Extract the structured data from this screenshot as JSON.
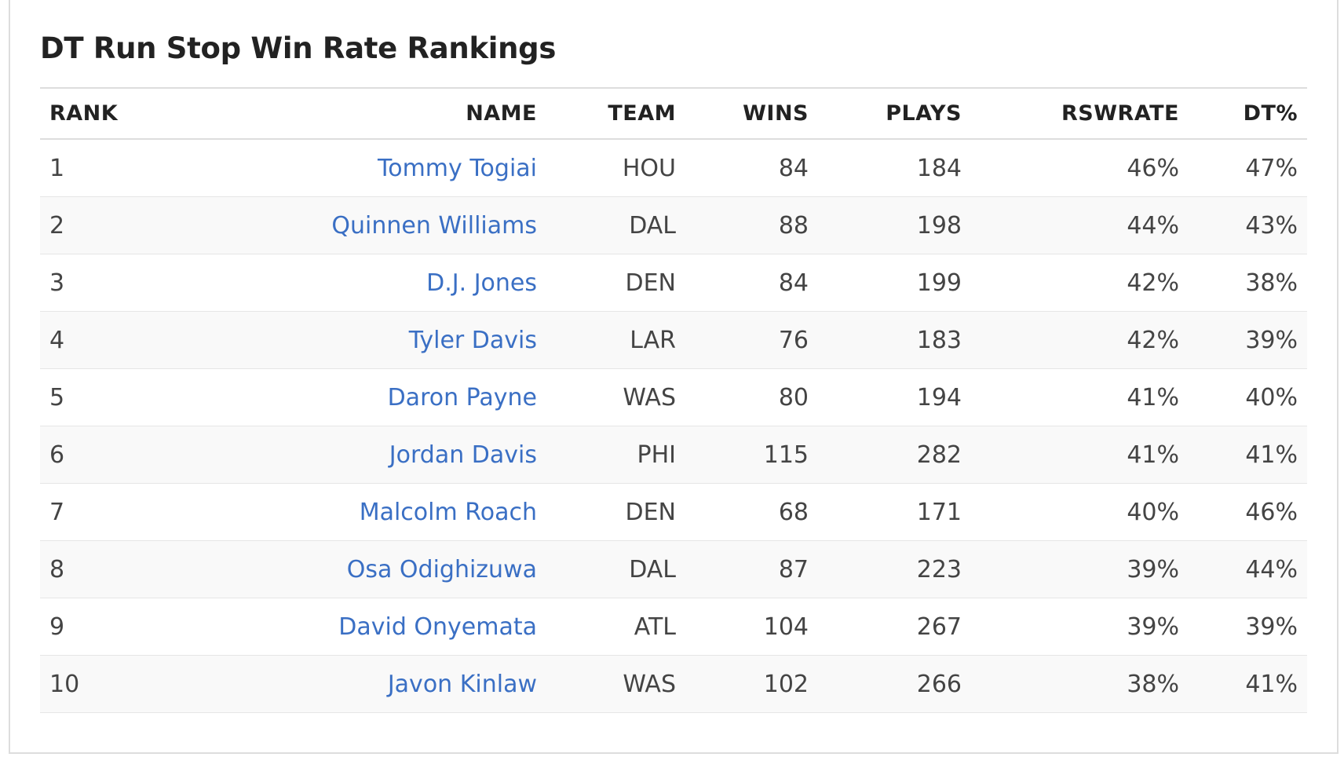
{
  "header": {
    "title": "DT Run Stop Win Rate Rankings"
  },
  "table": {
    "columns": [
      "RANK",
      "NAME",
      "TEAM",
      "WINS",
      "PLAYS",
      "RSWRATE",
      "DT%"
    ],
    "rows": [
      [
        "1",
        "Tommy Togiai",
        "HOU",
        "84",
        "184",
        "46%",
        "47%"
      ],
      [
        "2",
        "Quinnen Williams",
        "DAL",
        "88",
        "198",
        "44%",
        "43%"
      ],
      [
        "3",
        "D.J. Jones",
        "DEN",
        "84",
        "199",
        "42%",
        "38%"
      ],
      [
        "4",
        "Tyler Davis",
        "LAR",
        "76",
        "183",
        "42%",
        "39%"
      ],
      [
        "5",
        "Daron Payne",
        "WAS",
        "80",
        "194",
        "41%",
        "40%"
      ],
      [
        "6",
        "Jordan Davis",
        "PHI",
        "115",
        "282",
        "41%",
        "41%"
      ],
      [
        "7",
        "Malcolm Roach",
        "DEN",
        "68",
        "171",
        "40%",
        "46%"
      ],
      [
        "8",
        "Osa Odighizuwa",
        "DAL",
        "87",
        "223",
        "39%",
        "44%"
      ],
      [
        "9",
        "David Onyemata",
        "ATL",
        "104",
        "267",
        "39%",
        "39%"
      ],
      [
        "10",
        "Javon Kinlaw",
        "WAS",
        "102",
        "266",
        "38%",
        "41%"
      ]
    ]
  }
}
